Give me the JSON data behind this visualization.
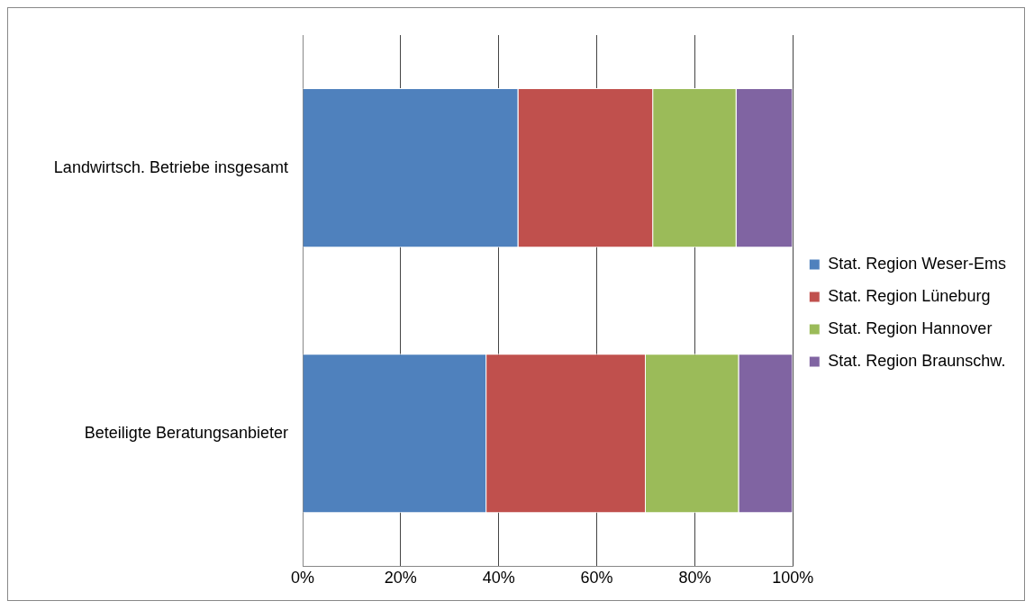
{
  "chart_data": {
    "type": "bar",
    "orientation": "horizontal",
    "stacked": true,
    "categories": [
      "Landwirtsch. Betriebe insgesamt",
      "Beteiligte Beratungsanbieter"
    ],
    "series": [
      {
        "name": "Stat. Region Weser-Ems",
        "color": "#4f81bd",
        "values": [
          44,
          37.5
        ]
      },
      {
        "name": "Stat. Region Lüneburg",
        "color": "#c0504d",
        "values": [
          27.5,
          32.5
        ]
      },
      {
        "name": "Stat. Region Hannover",
        "color": "#9bbb59",
        "values": [
          17,
          19
        ]
      },
      {
        "name": "Stat. Region Braunschw.",
        "color": "#8064a2",
        "values": [
          11.5,
          11
        ]
      }
    ],
    "xlim": [
      0,
      100
    ],
    "xticks": [
      {
        "value": 0,
        "label": "0%"
      },
      {
        "value": 20,
        "label": "20%"
      },
      {
        "value": 40,
        "label": "40%"
      },
      {
        "value": 60,
        "label": "60%"
      },
      {
        "value": 80,
        "label": "80%"
      },
      {
        "value": 100,
        "label": "100%"
      }
    ],
    "grid": "x",
    "legend": "right"
  }
}
